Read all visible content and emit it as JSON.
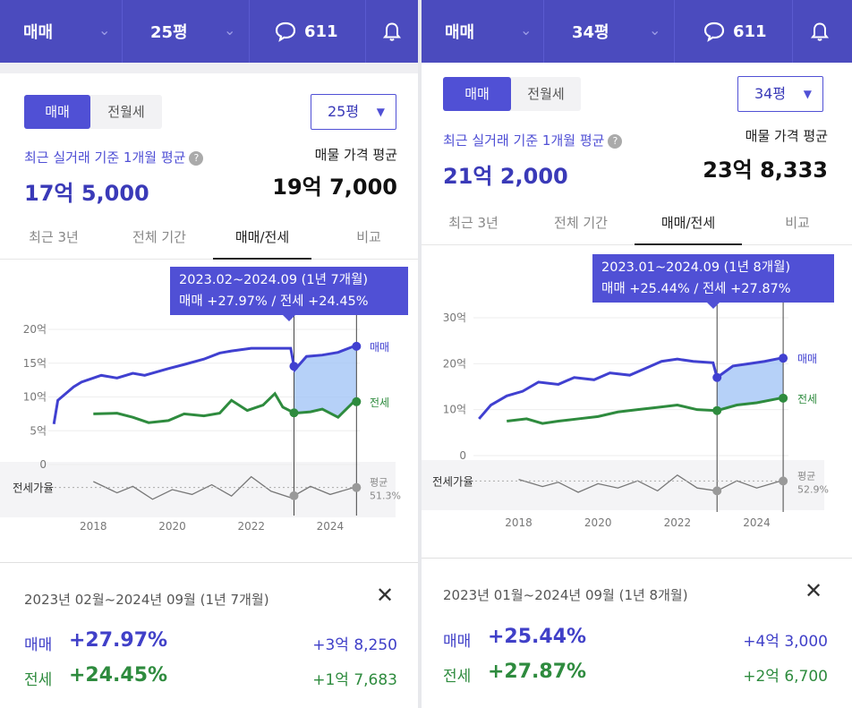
{
  "colors": {
    "brand": "#4b4bbe",
    "accent": "#5050d5",
    "sale": "#4040d0",
    "jeonse": "#2e8b3e",
    "ratio": "#777777",
    "fill_sale": "#9ec2f5"
  },
  "panels": [
    {
      "topbar": {
        "trade": "매매",
        "size": "25평",
        "comments": "611",
        "chat_icon": "chat-bubble-icon",
        "bell_icon": "bell-icon"
      },
      "toggle": {
        "on": "매매",
        "off": "전월세"
      },
      "size_select": "25평",
      "recent": {
        "label": "최근 실거래 기준 1개월 평균",
        "price": "17억 5,000"
      },
      "listing": {
        "label": "매물 가격 평균",
        "price": "19억 7,000"
      },
      "tabs": [
        "최근 3년",
        "전체 기간",
        "매매/전세",
        "비교"
      ],
      "tooltip": {
        "line1": "2023.02~2024.09 (1년 7개월)",
        "line2": "매매 +27.97%  /  전세 +24.45%"
      },
      "chart_data": {
        "type": "line",
        "y_ticks": [
          "20억",
          "15억",
          "10억",
          "5억",
          "0"
        ],
        "x_ticks": [
          "2018",
          "2020",
          "2022",
          "2024"
        ],
        "ylim": [
          0,
          20
        ],
        "series": [
          {
            "name": "매매",
            "x": [
              2017.0,
              2017.1,
              2017.5,
              2017.7,
              2018.2,
              2018.6,
              2019.0,
              2019.3,
              2019.9,
              2020.3,
              2020.8,
              2021.2,
              2021.5,
              2022.0,
              2022.5,
              2023.0,
              2023.1,
              2023.4,
              2023.8,
              2024.2,
              2024.6
            ],
            "values": [
              6,
              9.5,
              11.5,
              12.2,
              13.2,
              12.8,
              13.5,
              13.2,
              14.2,
              14.8,
              15.6,
              16.5,
              16.8,
              17.2,
              17.2,
              17.2,
              14.0,
              16.0,
              16.2,
              16.6,
              17.5
            ]
          },
          {
            "name": "전세",
            "x": [
              2018.0,
              2018.6,
              2019.0,
              2019.4,
              2019.9,
              2020.3,
              2020.8,
              2021.2,
              2021.5,
              2021.9,
              2022.3,
              2022.6,
              2022.8,
              2023.1,
              2023.5,
              2023.8,
              2024.2,
              2024.6
            ],
            "values": [
              7.5,
              7.6,
              7.0,
              6.2,
              6.5,
              7.5,
              7.2,
              7.6,
              9.5,
              8.0,
              8.8,
              10.5,
              8.5,
              7.6,
              7.8,
              8.2,
              7.0,
              9.3
            ]
          },
          {
            "name": "평균",
            "x": [
              2018.0,
              2018.6,
              2019.0,
              2019.5,
              2020.0,
              2020.5,
              2021.0,
              2021.5,
              2022.0,
              2022.5,
              2023.0,
              2023.5,
              2024.0,
              2024.6
            ],
            "values": [
              55,
              48,
              52,
              44,
              50,
              47,
              53,
              46,
              58,
              49,
              45,
              52,
              47,
              51.3
            ]
          }
        ],
        "ratio_label": "전세가율",
        "ratio_end_label": "평균",
        "ratio_end_value": "51.3%",
        "highlight_range": [
          "2023.02",
          "2024.09"
        ]
      },
      "summary": {
        "period": "2023년 02월~2024년 09월 (1년 7개월)",
        "sale_label": "매매",
        "sale_pct": "+27.97%",
        "sale_amt": "+3억 8,250",
        "jeonse_label": "전세",
        "jeonse_pct": "+24.45%",
        "jeonse_amt": "+1억 7,683"
      }
    },
    {
      "topbar": {
        "trade": "매매",
        "size": "34평",
        "comments": "611",
        "chat_icon": "chat-bubble-icon",
        "bell_icon": "bell-icon"
      },
      "toggle": {
        "on": "매매",
        "off": "전월세"
      },
      "size_select": "34평",
      "recent": {
        "label": "최근 실거래 기준 1개월 평균",
        "price": "21억 2,000"
      },
      "listing": {
        "label": "매물 가격 평균",
        "price": "23억 8,333"
      },
      "tabs": [
        "최근 3년",
        "전체 기간",
        "매매/전세",
        "비교"
      ],
      "tooltip": {
        "line1": "2023.01~2024.09 (1년 8개월)",
        "line2": "매매 +25.44%  /  전세 +27.87%"
      },
      "chart_data": {
        "type": "line",
        "y_ticks": [
          "30억",
          "20억",
          "10억",
          "0"
        ],
        "x_ticks": [
          "2018",
          "2020",
          "2022",
          "2024"
        ],
        "ylim": [
          0,
          30
        ],
        "series": [
          {
            "name": "매매",
            "x": [
              2017.0,
              2017.3,
              2017.7,
              2018.1,
              2018.5,
              2019.0,
              2019.4,
              2019.9,
              2020.3,
              2020.8,
              2021.2,
              2021.6,
              2022.0,
              2022.4,
              2022.9,
              2023.0,
              2023.4,
              2023.8,
              2024.2,
              2024.6
            ],
            "values": [
              8,
              11,
              13,
              14,
              16,
              15.5,
              17,
              16.5,
              18,
              17.5,
              19,
              20.5,
              21,
              20.5,
              20.2,
              17.0,
              19.5,
              20.0,
              20.5,
              21.2
            ]
          },
          {
            "name": "전세",
            "x": [
              2017.7,
              2018.2,
              2018.6,
              2019.0,
              2019.5,
              2020.0,
              2020.5,
              2021.0,
              2021.5,
              2022.0,
              2022.5,
              2023.0,
              2023.5,
              2024.0,
              2024.6
            ],
            "values": [
              7.5,
              8.0,
              7.0,
              7.5,
              8.0,
              8.5,
              9.5,
              10.0,
              10.5,
              11.0,
              10.0,
              9.8,
              11.0,
              11.5,
              12.5
            ]
          },
          {
            "name": "평균",
            "x": [
              2018.0,
              2018.6,
              2019.0,
              2019.5,
              2020.0,
              2020.5,
              2021.0,
              2021.5,
              2022.0,
              2022.5,
              2023.0,
              2023.5,
              2024.0,
              2024.6
            ],
            "values": [
              54,
              49,
              52,
              45,
              51,
              48,
              53,
              46,
              57,
              48,
              46,
              53,
              48,
              52.9
            ]
          }
        ],
        "ratio_label": "전세가율",
        "ratio_end_label": "평균",
        "ratio_end_value": "52.9%",
        "highlight_range": [
          "2023.01",
          "2024.09"
        ]
      },
      "summary": {
        "period": "2023년 01월~2024년 09월 (1년 8개월)",
        "sale_label": "매매",
        "sale_pct": "+25.44%",
        "sale_amt": "+4억 3,000",
        "jeonse_label": "전세",
        "jeonse_pct": "+27.87%",
        "jeonse_amt": "+2억 6,700"
      }
    }
  ]
}
